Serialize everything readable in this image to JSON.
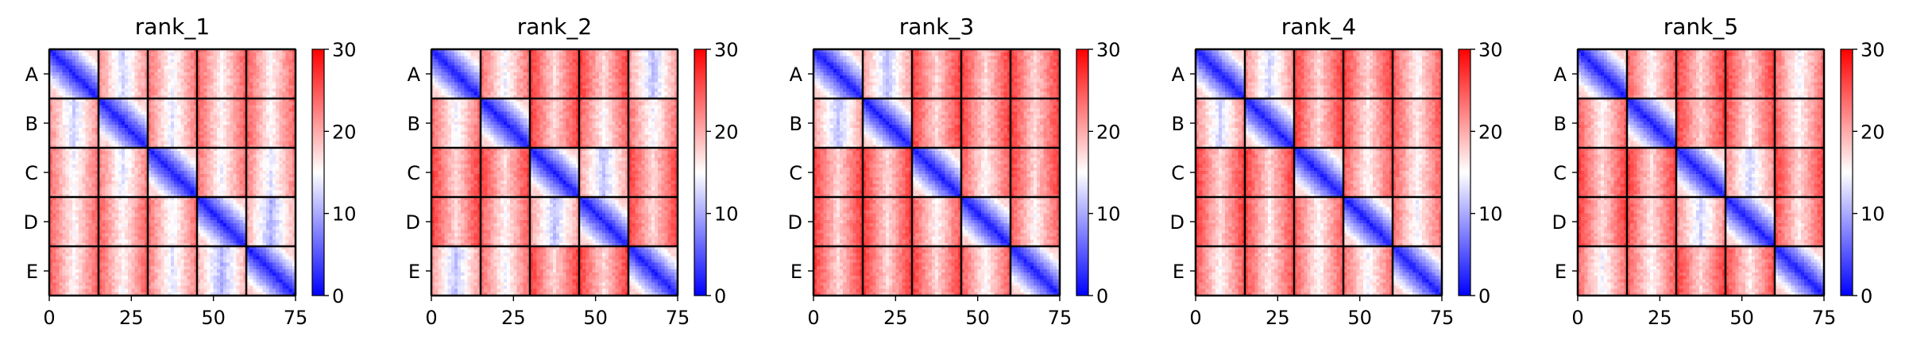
{
  "chart_data": [
    {
      "type": "heatmap",
      "title": "rank_1",
      "block_labels": [
        "A",
        "B",
        "C",
        "D",
        "E"
      ],
      "xticks": [
        0,
        25,
        50,
        75
      ],
      "xlim": [
        0,
        75
      ],
      "colorbar": {
        "ticks": [
          0,
          10,
          20,
          30
        ],
        "range": [
          0,
          30
        ],
        "colormap": "bwr"
      },
      "diag_blocks": [
        "A",
        "B",
        "C",
        "D",
        "E"
      ],
      "block_mean_matrix": [
        [
          4,
          14,
          16,
          17,
          17
        ],
        [
          14,
          4,
          15,
          17,
          17
        ],
        [
          16,
          15,
          4,
          16,
          15
        ],
        [
          17,
          17,
          16,
          4,
          12
        ],
        [
          17,
          17,
          15,
          12,
          4
        ]
      ]
    },
    {
      "type": "heatmap",
      "title": "rank_2",
      "block_labels": [
        "A",
        "B",
        "C",
        "D",
        "E"
      ],
      "xticks": [
        0,
        25,
        50,
        75
      ],
      "xlim": [
        0,
        75
      ],
      "colorbar": {
        "ticks": [
          0,
          10,
          20,
          30
        ],
        "range": [
          0,
          30
        ],
        "colormap": "bwr"
      },
      "diag_blocks": [
        "A",
        "B",
        "C",
        "D",
        "E"
      ],
      "block_mean_matrix": [
        [
          4,
          16,
          19,
          19,
          13
        ],
        [
          16,
          4,
          19,
          17,
          16
        ],
        [
          19,
          19,
          4,
          13,
          19
        ],
        [
          19,
          17,
          13,
          4,
          19
        ],
        [
          13,
          16,
          19,
          19,
          4
        ]
      ]
    },
    {
      "type": "heatmap",
      "title": "rank_3",
      "block_labels": [
        "A",
        "B",
        "C",
        "D",
        "E"
      ],
      "xticks": [
        0,
        25,
        50,
        75
      ],
      "xlim": [
        0,
        75
      ],
      "colorbar": {
        "ticks": [
          0,
          10,
          20,
          30
        ],
        "range": [
          0,
          30
        ],
        "colormap": "bwr"
      },
      "diag_blocks": [
        "A",
        "B",
        "C",
        "D",
        "E"
      ],
      "block_mean_matrix": [
        [
          4,
          13,
          19,
          19,
          19
        ],
        [
          13,
          4,
          19,
          19,
          19
        ],
        [
          19,
          19,
          4,
          17,
          19
        ],
        [
          19,
          19,
          17,
          4,
          17
        ],
        [
          19,
          19,
          19,
          17,
          4
        ]
      ]
    },
    {
      "type": "heatmap",
      "title": "rank_4",
      "block_labels": [
        "A",
        "B",
        "C",
        "D",
        "E"
      ],
      "xticks": [
        0,
        25,
        50,
        75
      ],
      "xlim": [
        0,
        75
      ],
      "colorbar": {
        "ticks": [
          0,
          10,
          20,
          30
        ],
        "range": [
          0,
          30
        ],
        "colormap": "bwr"
      },
      "diag_blocks": [
        "A",
        "B",
        "C",
        "D",
        "E"
      ],
      "block_mean_matrix": [
        [
          4,
          14,
          19,
          19,
          17
        ],
        [
          14,
          4,
          19,
          18,
          18
        ],
        [
          19,
          19,
          4,
          17,
          17
        ],
        [
          19,
          18,
          17,
          4,
          16
        ],
        [
          17,
          18,
          17,
          16,
          4
        ]
      ]
    },
    {
      "type": "heatmap",
      "title": "rank_5",
      "block_labels": [
        "A",
        "B",
        "C",
        "D",
        "E"
      ],
      "xticks": [
        0,
        25,
        50,
        75
      ],
      "xlim": [
        0,
        75
      ],
      "colorbar": {
        "ticks": [
          0,
          10,
          20,
          30
        ],
        "range": [
          0,
          30
        ],
        "colormap": "bwr"
      },
      "diag_blocks": [
        "A",
        "B",
        "C",
        "D",
        "E"
      ],
      "block_mean_matrix": [
        [
          4,
          17,
          19,
          19,
          16
        ],
        [
          17,
          4,
          19,
          18,
          17
        ],
        [
          19,
          19,
          4,
          14,
          19
        ],
        [
          19,
          18,
          14,
          4,
          18
        ],
        [
          16,
          17,
          19,
          18,
          4
        ]
      ]
    }
  ]
}
